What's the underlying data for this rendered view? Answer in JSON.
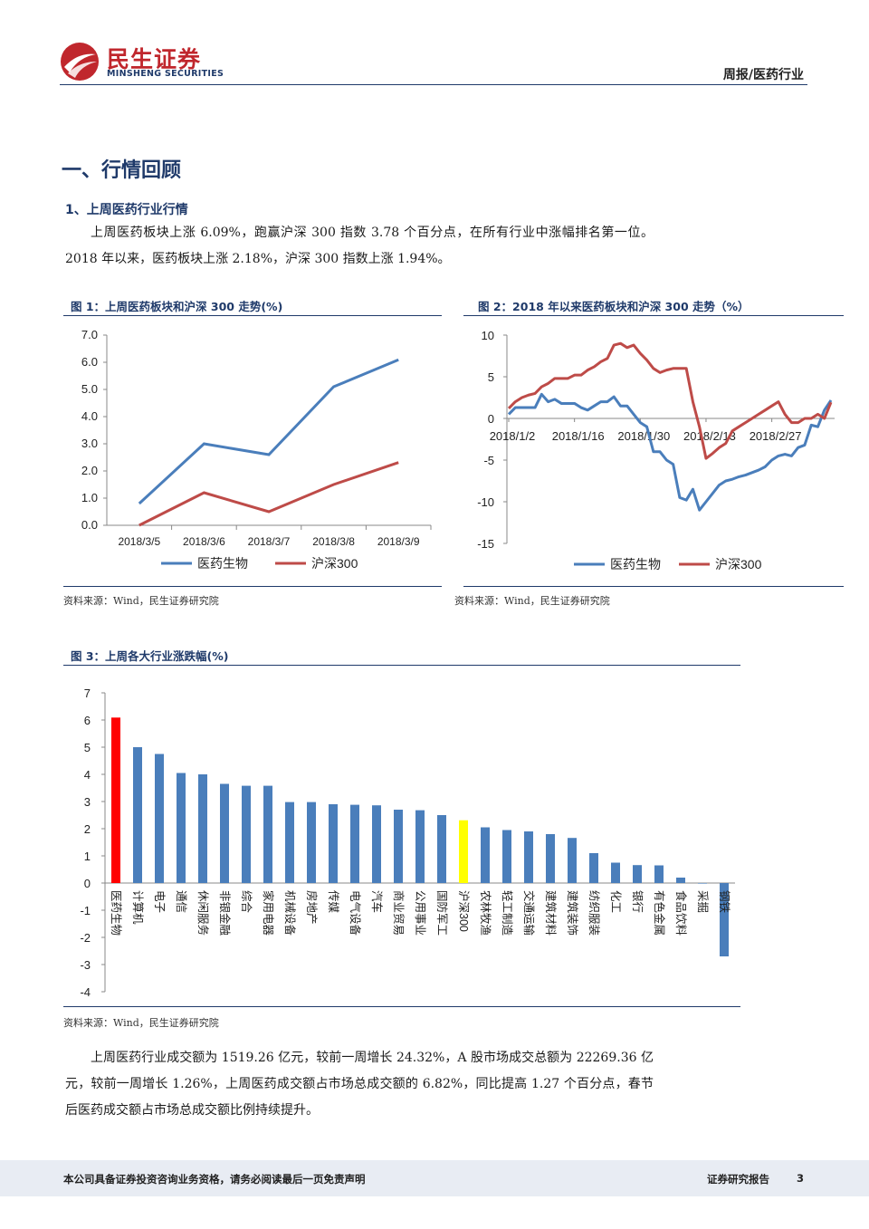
{
  "header": {
    "brand_cn": "民生证券",
    "brand_en": "MINSHENG SECURITIES",
    "report_tag": "周报/医药行业"
  },
  "section": {
    "title": "一、行情回顾",
    "subtitle": "1、上周医药行业行情",
    "para1": "上周医药板块上涨 6.09%，跑赢沪深 300 指数 3.78 个百分点，在所有行业中涨幅排名第一位。2018 年以来，医药板块上涨 2.18%，沪深 300 指数上涨 1.94%。",
    "para2": "上周医药行业成交额为 1519.26 亿元，较前一周增长 24.32%，A 股市场成交总额为 22269.36 亿元，较前一周增长 1.26%，上周医药成交额占市场总成交额的 6.82%，同比提高 1.27 个百分点，春节后医药成交额占市场总成交额比例持续提升。"
  },
  "figures": {
    "fig1_title": "图 1：上周医药板块和沪深 300 走势(%)",
    "fig2_title": "图 2：2018 年以来医药板块和沪深 300 走势（%）",
    "fig3_title": "图 3：上周各大行业涨跌幅(%)",
    "source": "资料来源：Wind，民生证券研究院"
  },
  "colors": {
    "brand_navy": "#1f3a6a",
    "brand_red": "#c0272d",
    "series_blue": "#4a7ebb",
    "series_red": "#be4b48",
    "highlight_red": "#ff0000",
    "highlight_yellow": "#ffff00"
  },
  "chart_data": [
    {
      "type": "line",
      "categories": [
        "2018/3/5",
        "2018/3/6",
        "2018/3/7",
        "2018/3/8",
        "2018/3/9"
      ],
      "series": [
        {
          "name": "医药生物",
          "values": [
            0.8,
            3.0,
            2.6,
            5.1,
            6.09
          ]
        },
        {
          "name": "沪深300",
          "values": [
            0.0,
            1.2,
            0.5,
            1.5,
            2.31
          ]
        }
      ],
      "ylim": [
        0,
        7
      ],
      "yticks": [
        "0.0",
        "1.0",
        "2.0",
        "3.0",
        "4.0",
        "5.0",
        "6.0",
        "7.0"
      ],
      "legend": "bottom"
    },
    {
      "type": "line",
      "xticks": [
        "2018/1/2",
        "2018/1/16",
        "2018/1/30",
        "2018/2/13",
        "2018/2/27"
      ],
      "series": [
        {
          "name": "医药生物",
          "values": [
            0.5,
            1.3,
            1.3,
            1.3,
            1.3,
            2.9,
            2.0,
            2.3,
            1.8,
            1.8,
            1.8,
            1.3,
            1.0,
            1.5,
            2.0,
            2.0,
            2.6,
            1.5,
            1.5,
            0.5,
            -0.5,
            -1.0,
            -4.0,
            -4.0,
            -5.0,
            -5.5,
            -9.5,
            -9.8,
            -8.5,
            -11.0,
            -10.0,
            -9.0,
            -8.0,
            -7.5,
            -7.3,
            -7.0,
            -6.8,
            -6.5,
            -6.2,
            -5.8,
            -5.0,
            -4.5,
            -4.3,
            -4.5,
            -3.5,
            -3.2,
            -0.8,
            -1.0,
            1.0,
            2.18
          ]
        },
        {
          "name": "沪深300",
          "values": [
            1.2,
            2.0,
            2.5,
            2.8,
            3.0,
            3.8,
            4.2,
            4.8,
            4.8,
            4.8,
            5.2,
            5.2,
            5.8,
            6.2,
            6.8,
            7.2,
            8.8,
            9.0,
            8.5,
            8.8,
            7.8,
            7.0,
            6.0,
            5.5,
            5.8,
            6.0,
            6.0,
            6.0,
            2.0,
            -1.0,
            -4.8,
            -4.2,
            -3.5,
            -3.0,
            -1.5,
            -1.0,
            -0.5,
            0.0,
            0.5,
            1.0,
            1.5,
            2.0,
            0.5,
            -0.5,
            -0.5,
            0.0,
            0.0,
            0.5,
            0.0,
            1.94
          ]
        }
      ],
      "ylim": [
        -15,
        10
      ],
      "yticks": [
        "-15",
        "-10",
        "-5",
        "0",
        "5",
        "10"
      ],
      "legend": "bottom"
    },
    {
      "type": "bar",
      "categories": [
        "医药生物",
        "计算机",
        "电子",
        "通信",
        "休闲服务",
        "非银金融",
        "综合",
        "家用电器",
        "机械设备",
        "房地产",
        "传媒",
        "电气设备",
        "汽车",
        "商业贸易",
        "公用事业",
        "国防军工",
        "沪深300",
        "农林牧渔",
        "轻工制造",
        "交通运输",
        "建筑材料",
        "建筑装饰",
        "纺织服装",
        "化工",
        "银行",
        "有色金属",
        "食品饮料",
        "采掘",
        "钢铁"
      ],
      "values": [
        6.09,
        5.0,
        4.75,
        4.05,
        4.0,
        3.65,
        3.58,
        3.58,
        2.98,
        2.98,
        2.9,
        2.88,
        2.86,
        2.7,
        2.68,
        2.5,
        2.31,
        2.05,
        1.95,
        1.9,
        1.8,
        1.66,
        1.1,
        0.75,
        0.66,
        0.65,
        0.2,
        -0.02,
        -2.7
      ],
      "highlight": {
        "医药生物": "red",
        "沪深300": "yellow"
      },
      "ylim": [
        -4,
        7
      ],
      "yticks": [
        "-4",
        "-3",
        "-2",
        "-1",
        "0",
        "1",
        "2",
        "3",
        "4",
        "5",
        "6",
        "7"
      ],
      "grid": false
    }
  ]
}
